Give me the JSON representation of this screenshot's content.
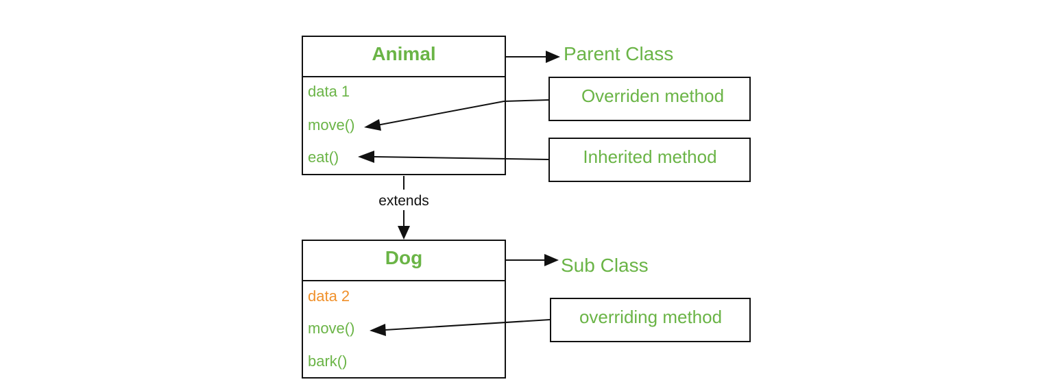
{
  "parent_class": {
    "name": "Animal",
    "members": [
      "data 1",
      "move()",
      "eat()"
    ]
  },
  "sub_class": {
    "name": "Dog",
    "members": [
      "data 2",
      "move()",
      "bark()"
    ]
  },
  "relationship_label": "extends",
  "labels": {
    "parent": "Parent Class",
    "sub": "Sub Class"
  },
  "callouts": {
    "overriden": "Overriden method",
    "inherited": "Inherited method",
    "overriding": "overriding method"
  },
  "colors": {
    "member_text": "#6ab446",
    "highlight_member": "#f0902a",
    "lines": "#111111"
  }
}
